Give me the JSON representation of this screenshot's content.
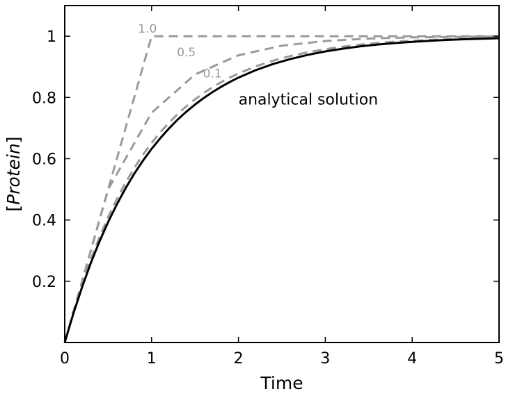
{
  "chart_data": {
    "type": "line",
    "xlabel": "Time",
    "ylabel": "[Protein]",
    "xlim": [
      0,
      5
    ],
    "ylim": [
      0,
      1.1
    ],
    "x_ticks": [
      "0",
      "1",
      "2",
      "3",
      "4",
      "5"
    ],
    "y_ticks": [
      "0.2",
      "0.4",
      "0.6",
      "0.8",
      "1"
    ],
    "grid": false,
    "annotation": "analytical solution",
    "colors": {
      "analytical": "#000000",
      "approximation": "#9a9a9a"
    },
    "series": [
      {
        "label": "1.0",
        "style": "dashed",
        "x": [
          0,
          1,
          2,
          3,
          4,
          5
        ],
        "y": [
          0,
          1.0,
          1.0,
          1.0,
          1.0,
          1.0
        ]
      },
      {
        "label": "0.5",
        "style": "dashed",
        "x": [
          0,
          0.5,
          1.0,
          1.5,
          2.0,
          2.5,
          3.0,
          3.5,
          4.0,
          4.5,
          5.0
        ],
        "y": [
          0,
          0.5,
          0.75,
          0.875,
          0.9375,
          0.9688,
          0.9844,
          0.9922,
          0.9961,
          0.998,
          0.999
        ]
      },
      {
        "label": "0.1",
        "style": "dashed",
        "x": [
          0,
          0.1,
          0.2,
          0.3,
          0.4,
          0.5,
          0.6,
          0.7,
          0.8,
          0.9,
          1.0,
          1.1,
          1.2,
          1.3,
          1.4,
          1.5,
          1.6,
          1.7,
          1.8,
          1.9,
          2.0,
          2.2,
          2.4,
          2.6,
          2.8,
          3.0,
          3.2,
          3.4,
          3.6,
          3.8,
          4.0,
          4.2,
          4.4,
          4.6,
          4.8,
          5.0
        ],
        "y": [
          0,
          0.1,
          0.19,
          0.271,
          0.3439,
          0.4095,
          0.4686,
          0.5217,
          0.5695,
          0.6126,
          0.6513,
          0.6862,
          0.7176,
          0.7458,
          0.7712,
          0.7941,
          0.8147,
          0.8332,
          0.8499,
          0.8649,
          0.8784,
          0.9015,
          0.9202,
          0.9354,
          0.9477,
          0.9576,
          0.9657,
          0.9722,
          0.9775,
          0.9818,
          0.9852,
          0.988,
          0.9903,
          0.9921,
          0.9936,
          0.9948
        ]
      },
      {
        "label": "",
        "style": "solid",
        "x": [
          0,
          0.1,
          0.2,
          0.3,
          0.4,
          0.5,
          0.6,
          0.7,
          0.8,
          0.9,
          1.0,
          1.1,
          1.2,
          1.3,
          1.4,
          1.5,
          1.6,
          1.7,
          1.8,
          1.9,
          2.0,
          2.2,
          2.4,
          2.6,
          2.8,
          3.0,
          3.2,
          3.4,
          3.6,
          3.8,
          4.0,
          4.2,
          4.4,
          4.6,
          4.8,
          5.0
        ],
        "y": [
          0,
          0.0952,
          0.1813,
          0.2592,
          0.3297,
          0.3935,
          0.4512,
          0.5034,
          0.5507,
          0.5934,
          0.6321,
          0.6671,
          0.6988,
          0.7275,
          0.7534,
          0.7769,
          0.7981,
          0.8173,
          0.8347,
          0.8504,
          0.8647,
          0.8892,
          0.9093,
          0.9257,
          0.9392,
          0.9502,
          0.9592,
          0.9666,
          0.9727,
          0.9776,
          0.9817,
          0.985,
          0.9877,
          0.9899,
          0.9918,
          0.9933
        ]
      }
    ]
  }
}
